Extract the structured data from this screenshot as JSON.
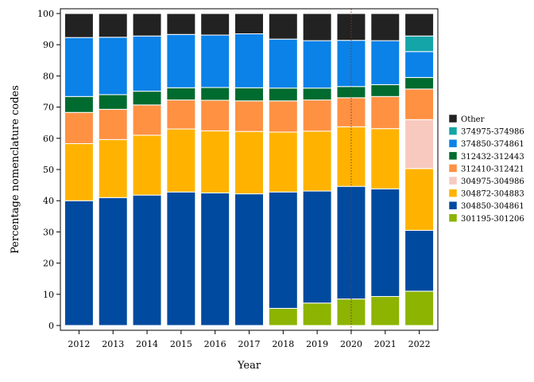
{
  "chart_data": {
    "type": "bar",
    "stacked": true,
    "xlabel": "Year",
    "ylabel": "Percentage nomenclature codes",
    "ylim": [
      0,
      100
    ],
    "yticks": [
      0,
      10,
      20,
      30,
      40,
      50,
      60,
      70,
      80,
      90,
      100
    ],
    "grid": false,
    "legend_position": "right",
    "categories": [
      "2012",
      "2013",
      "2014",
      "2015",
      "2016",
      "2017",
      "2018",
      "2019",
      "2020",
      "2021",
      "2022"
    ],
    "reference_line": {
      "x": "2020",
      "style": "dotted",
      "color": "#7a3b2e"
    },
    "series": [
      {
        "name": "301195-301206",
        "color": "#8cb400",
        "values": [
          0,
          0,
          0,
          0,
          0,
          0,
          5.5,
          7.2,
          8.5,
          9.3,
          11
        ]
      },
      {
        "name": "304850-304861",
        "color": "#004a9f",
        "values": [
          40,
          41,
          41.8,
          42.8,
          42.5,
          42.2,
          37.3,
          35.9,
          36.1,
          34.5,
          19.5
        ]
      },
      {
        "name": "304872-304883",
        "color": "#ffb300",
        "values": [
          18.3,
          18.6,
          19.2,
          20.2,
          19.9,
          20,
          19.2,
          19.2,
          19.1,
          19.3,
          19.8
        ]
      },
      {
        "name": "304975-304986",
        "color": "#f7c9bf",
        "values": [
          0,
          0,
          0,
          0,
          0,
          0,
          0,
          0,
          0,
          0,
          15.7
        ]
      },
      {
        "name": "312410-312421",
        "color": "#ff9143",
        "values": [
          10,
          9.7,
          9.7,
          9.3,
          9.8,
          9.8,
          10,
          10,
          9.3,
          10.3,
          9.8
        ]
      },
      {
        "name": "312432-312443",
        "color": "#006b2e",
        "values": [
          5.1,
          4.7,
          4.4,
          3.9,
          4.1,
          4.2,
          4.1,
          3.8,
          3.6,
          3.8,
          3.7
        ]
      },
      {
        "name": "374850-374861",
        "color": "#0a82e8",
        "values": [
          18.9,
          18.4,
          17.7,
          17.1,
          16.8,
          17.3,
          15.7,
          15.2,
          14.8,
          14.1,
          8.3
        ]
      },
      {
        "name": "374975-374986",
        "color": "#14a5a9",
        "values": [
          0,
          0,
          0,
          0,
          0,
          0,
          0,
          0,
          0,
          0,
          5
        ]
      },
      {
        "name": "Other",
        "color": "#222222",
        "values": [
          7.7,
          7.6,
          7.2,
          6.7,
          6.9,
          6.5,
          8.2,
          8.7,
          8.6,
          8.7,
          7.2
        ]
      }
    ]
  }
}
